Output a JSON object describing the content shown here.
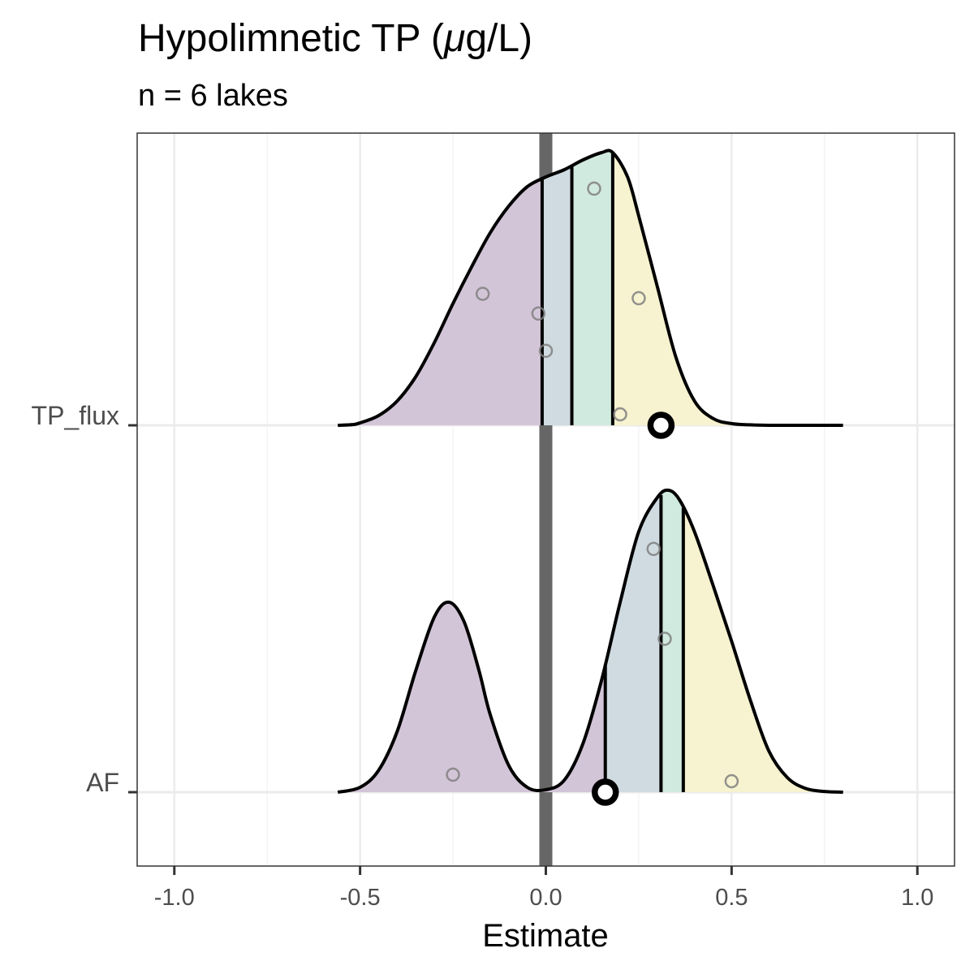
{
  "chart_data": {
    "type": "area",
    "chart_kind": "ridgeline density with quantile shading, points and point estimates",
    "title_main": "Hypolimnetic TP (",
    "title_mu": "μ",
    "title_end": "g/L)",
    "subtitle": "n = 6 lakes",
    "xlabel": "Estimate",
    "ylabel": "",
    "xlim": [
      -1.1,
      1.1
    ],
    "x_ticks": [
      -1.0,
      -0.5,
      0.0,
      0.5,
      1.0
    ],
    "x_tick_labels": [
      "-1.0",
      "-0.5",
      "0.0",
      "0.5",
      "1.0"
    ],
    "x_minor_ticks": [
      -0.75,
      -0.25,
      0.25,
      0.75
    ],
    "grid": true,
    "zero_line": {
      "x": 0.0,
      "color": "#666666"
    },
    "quantile_colors": [
      "#d3c5d8",
      "#d0dbe1",
      "#d1eadf",
      "#f7f2cf"
    ],
    "categories": [
      "TP_flux",
      "AF"
    ],
    "series": [
      {
        "name": "TP_flux",
        "density_x": [
          -0.56,
          -0.52,
          -0.5,
          -0.45,
          -0.4,
          -0.35,
          -0.3,
          -0.25,
          -0.2,
          -0.15,
          -0.1,
          -0.05,
          0.0,
          0.05,
          0.1,
          0.15,
          0.18,
          0.22,
          0.25,
          0.3,
          0.35,
          0.4,
          0.45,
          0.5,
          0.55,
          0.6,
          0.65,
          0.7,
          0.75,
          0.8
        ],
        "density_y": [
          0.0,
          0.003,
          0.01,
          0.04,
          0.1,
          0.2,
          0.34,
          0.5,
          0.65,
          0.79,
          0.9,
          0.98,
          1.02,
          1.05,
          1.09,
          1.12,
          1.12,
          1.02,
          0.86,
          0.57,
          0.28,
          0.1,
          0.028,
          0.007,
          0.002,
          0.0,
          0.0,
          0.0,
          0.0,
          0.0
        ],
        "quantile_breaks": [
          -0.01,
          0.07,
          0.18
        ],
        "points": [
          {
            "x": 0.13,
            "y": 1.08
          },
          {
            "x": -0.17,
            "y": 0.6
          },
          {
            "x": 0.25,
            "y": 0.58
          },
          {
            "x": -0.02,
            "y": 0.51
          },
          {
            "x": 0.0,
            "y": 0.34
          },
          {
            "x": 0.2,
            "y": 0.05
          }
        ],
        "estimate": 0.31
      },
      {
        "name": "AF",
        "density_x": [
          -0.56,
          -0.5,
          -0.45,
          -0.4,
          -0.35,
          -0.3,
          -0.26,
          -0.22,
          -0.18,
          -0.15,
          -0.1,
          -0.05,
          0.0,
          0.05,
          0.1,
          0.15,
          0.2,
          0.25,
          0.3,
          0.33,
          0.36,
          0.4,
          0.45,
          0.5,
          0.55,
          0.6,
          0.65,
          0.7,
          0.75,
          0.8
        ],
        "density_y": [
          0.0,
          0.02,
          0.09,
          0.25,
          0.5,
          0.72,
          0.78,
          0.7,
          0.5,
          0.32,
          0.11,
          0.02,
          0.01,
          0.05,
          0.2,
          0.46,
          0.78,
          1.07,
          1.21,
          1.24,
          1.2,
          1.07,
          0.85,
          0.62,
          0.38,
          0.17,
          0.06,
          0.015,
          0.003,
          0.0
        ],
        "quantile_breaks": [
          0.16,
          0.31,
          0.37
        ],
        "points": [
          {
            "x": 0.29,
            "y": 1.11
          },
          {
            "x": 0.32,
            "y": 0.7
          },
          {
            "x": -0.25,
            "y": 0.08
          },
          {
            "x": 0.5,
            "y": 0.05
          }
        ],
        "estimate": 0.16
      }
    ]
  }
}
